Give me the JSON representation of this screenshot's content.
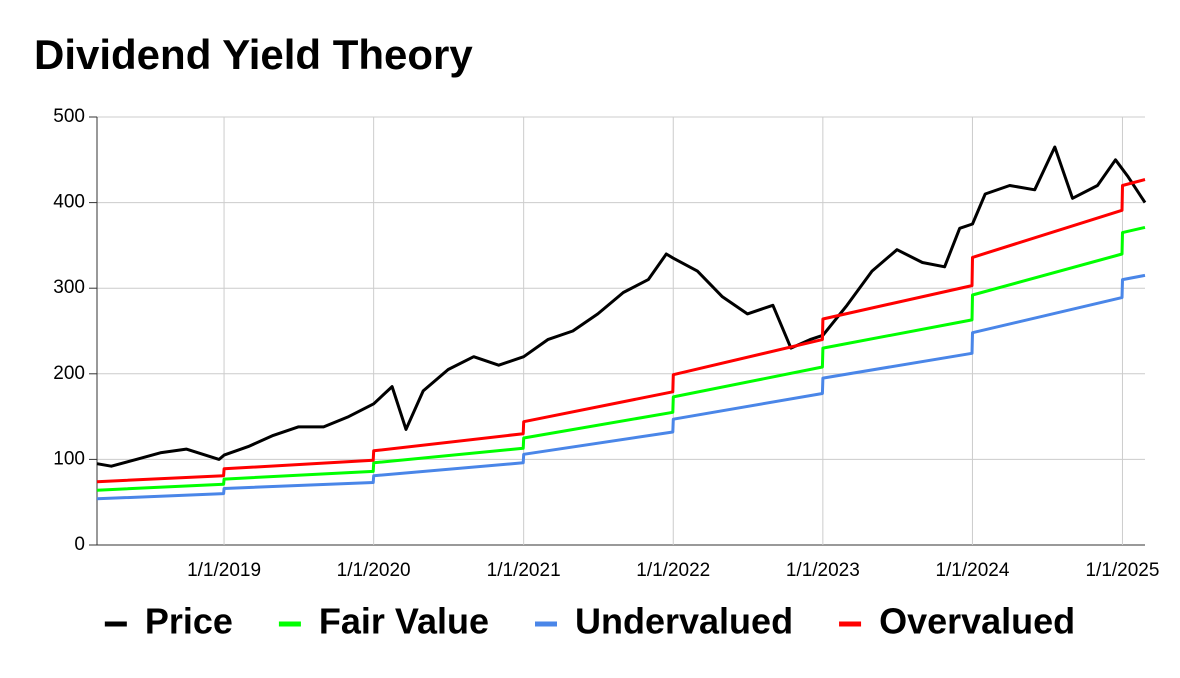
{
  "chart_data": {
    "type": "line",
    "title": "Dividend Yield Theory",
    "xlim": [
      "2018-02-25",
      "2025-02-25"
    ],
    "xticks": [
      {
        "value": "2019-01-01",
        "label": "1/1/2019"
      },
      {
        "value": "2020-01-01",
        "label": "1/1/2020"
      },
      {
        "value": "2021-01-01",
        "label": "1/1/2021"
      },
      {
        "value": "2022-01-01",
        "label": "1/1/2022"
      },
      {
        "value": "2023-01-01",
        "label": "1/1/2023"
      },
      {
        "value": "2024-01-01",
        "label": "1/1/2024"
      },
      {
        "value": "2025-01-01",
        "label": "1/1/2025"
      }
    ],
    "ylim": [
      0,
      500
    ],
    "yticks": [
      0,
      100,
      200,
      300,
      400,
      500
    ],
    "grid": true,
    "legend": "bottom",
    "series": [
      {
        "name": "Price",
        "color": "#000000",
        "x": [
          "2018-02-25",
          "2018-04-01",
          "2018-06-01",
          "2018-08-01",
          "2018-10-01",
          "2018-12-20",
          "2019-01-01",
          "2019-03-01",
          "2019-05-01",
          "2019-07-01",
          "2019-09-01",
          "2019-11-01",
          "2020-01-01",
          "2020-02-15",
          "2020-03-20",
          "2020-05-01",
          "2020-07-01",
          "2020-09-01",
          "2020-11-01",
          "2021-01-01",
          "2021-03-01",
          "2021-05-01",
          "2021-07-01",
          "2021-09-01",
          "2021-11-01",
          "2021-12-15",
          "2022-01-01",
          "2022-03-01",
          "2022-05-01",
          "2022-07-01",
          "2022-09-01",
          "2022-10-15",
          "2022-12-01",
          "2023-01-01",
          "2023-03-01",
          "2023-05-01",
          "2023-07-01",
          "2023-09-01",
          "2023-10-25",
          "2023-12-01",
          "2024-01-01",
          "2024-02-01",
          "2024-04-01",
          "2024-06-01",
          "2024-07-20",
          "2024-09-01",
          "2024-11-01",
          "2024-12-15",
          "2025-01-15",
          "2025-02-25"
        ],
        "values": [
          95,
          92,
          100,
          108,
          112,
          100,
          105,
          115,
          128,
          138,
          138,
          150,
          165,
          185,
          135,
          180,
          205,
          220,
          210,
          220,
          240,
          250,
          270,
          295,
          310,
          340,
          335,
          320,
          290,
          270,
          280,
          230,
          240,
          245,
          280,
          320,
          345,
          330,
          325,
          370,
          375,
          410,
          420,
          415,
          465,
          405,
          420,
          450,
          430,
          400
        ]
      },
      {
        "name": "Fair Value",
        "color": "#00ff00",
        "x": [
          "2018-02-25",
          "2018-12-31",
          "2019-01-01",
          "2019-12-31",
          "2020-01-01",
          "2020-12-31",
          "2021-01-01",
          "2021-12-31",
          "2022-01-01",
          "2022-12-31",
          "2023-01-01",
          "2023-12-31",
          "2024-01-01",
          "2024-12-31",
          "2025-01-01",
          "2025-02-25"
        ],
        "values": [
          64,
          71,
          77,
          86,
          96,
          113,
          125,
          155,
          173,
          208,
          230,
          263,
          292,
          340,
          365,
          371
        ]
      },
      {
        "name": "Undervalued",
        "color": "#4a86e8",
        "x": [
          "2018-02-25",
          "2018-12-31",
          "2019-01-01",
          "2019-12-31",
          "2020-01-01",
          "2020-12-31",
          "2021-01-01",
          "2021-12-31",
          "2022-01-01",
          "2022-12-31",
          "2023-01-01",
          "2023-12-31",
          "2024-01-01",
          "2024-12-31",
          "2025-01-01",
          "2025-02-25"
        ],
        "values": [
          54,
          60,
          66,
          73,
          81,
          96,
          106,
          132,
          147,
          177,
          195,
          224,
          248,
          289,
          310,
          315
        ]
      },
      {
        "name": "Overvalued",
        "color": "#ff0000",
        "x": [
          "2018-02-25",
          "2018-12-31",
          "2019-01-01",
          "2019-12-31",
          "2020-01-01",
          "2020-12-31",
          "2021-01-01",
          "2021-12-31",
          "2022-01-01",
          "2022-12-31",
          "2023-01-01",
          "2023-12-31",
          "2024-01-01",
          "2024-12-31",
          "2025-01-01",
          "2025-02-25"
        ],
        "values": [
          74,
          81,
          89,
          99,
          110,
          130,
          144,
          179,
          199,
          240,
          264,
          303,
          336,
          391,
          420,
          427
        ]
      }
    ]
  }
}
